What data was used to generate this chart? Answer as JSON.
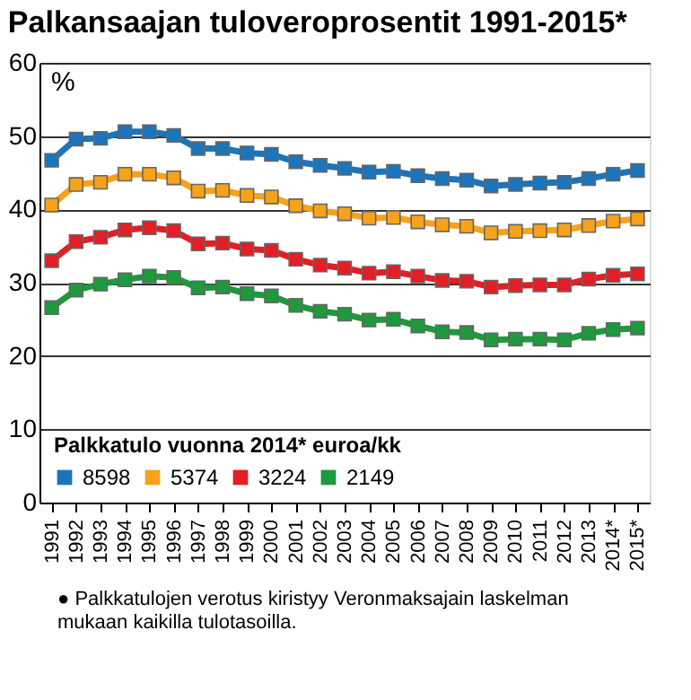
{
  "chart_data": {
    "type": "line",
    "title": "Palkansaajan tuloveroprosentit 1991-2015*",
    "ylabel": "%",
    "legend_title": "Palkkatulo vuonna 2014* euroa/kk",
    "categories": [
      "1991",
      "1992",
      "1993",
      "1994",
      "1995",
      "1996",
      "1997",
      "1998",
      "1999",
      "2000",
      "2001",
      "2002",
      "2003",
      "2004",
      "2005",
      "2006",
      "2007",
      "2008",
      "2009",
      "2010",
      "2011",
      "2012",
      "2013",
      "2014*",
      "2015*"
    ],
    "series": [
      {
        "name": "8598",
        "color": "#1a75bc",
        "values": [
          46.7,
          49.6,
          49.7,
          50.6,
          50.6,
          50.1,
          48.3,
          48.3,
          47.7,
          47.5,
          46.5,
          46.0,
          45.6,
          45.1,
          45.2,
          44.6,
          44.2,
          44.0,
          43.2,
          43.4,
          43.6,
          43.7,
          44.2,
          44.8,
          45.3
        ]
      },
      {
        "name": "5374",
        "color": "#f7a21b",
        "values": [
          40.6,
          43.4,
          43.7,
          44.8,
          44.8,
          44.3,
          42.5,
          42.6,
          41.9,
          41.7,
          40.5,
          39.8,
          39.4,
          38.8,
          38.9,
          38.3,
          37.9,
          37.7,
          36.8,
          37.0,
          37.1,
          37.2,
          37.8,
          38.4,
          38.7
        ]
      },
      {
        "name": "3224",
        "color": "#e31e24",
        "values": [
          33.0,
          35.6,
          36.2,
          37.2,
          37.5,
          37.1,
          35.3,
          35.4,
          34.6,
          34.4,
          33.2,
          32.4,
          32.0,
          31.3,
          31.5,
          30.9,
          30.3,
          30.2,
          29.4,
          29.6,
          29.7,
          29.7,
          30.5,
          31.0,
          31.2
        ]
      },
      {
        "name": "2149",
        "color": "#1d9a3c",
        "values": [
          26.6,
          29.0,
          29.8,
          30.4,
          30.9,
          30.7,
          29.3,
          29.4,
          28.5,
          28.2,
          26.9,
          26.1,
          25.7,
          24.9,
          25.0,
          24.1,
          23.3,
          23.2,
          22.2,
          22.3,
          22.3,
          22.2,
          23.1,
          23.6,
          23.8
        ]
      }
    ],
    "ylim": [
      0,
      60
    ],
    "yticks": [
      0,
      10,
      20,
      30,
      40,
      50,
      60
    ],
    "grid": "y",
    "marker": "square",
    "line_style": "solid",
    "legend": "bottom left",
    "annotations": [
      "● Palkkatulojen verotus kiristyy Veronmaksajain laskelman\nmukaan kaikilla tulotasoilla."
    ]
  }
}
